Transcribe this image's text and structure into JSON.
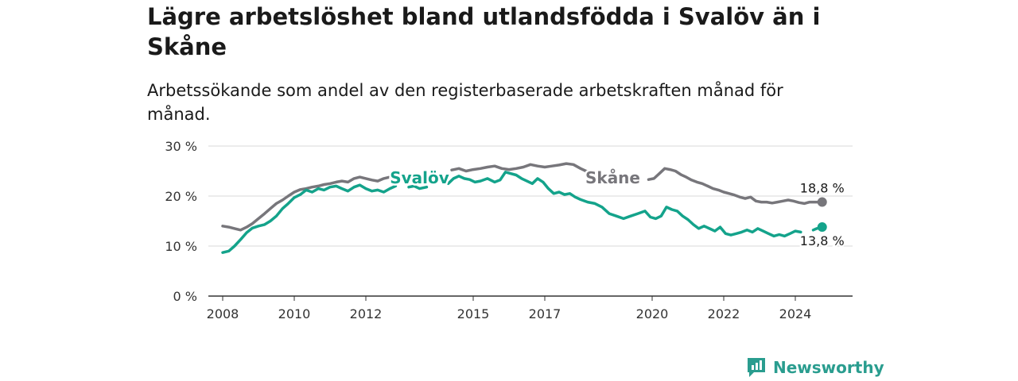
{
  "header": {
    "title": "Lägre arbetslöshet bland utlandsfödda i Svalöv än i Skåne",
    "subtitle": "Arbetssökande som andel av den registerbaserade arbetskraften månad för månad."
  },
  "brand": {
    "name": "Newsworthy",
    "icon": "newsworthy-chart-icon",
    "color": "#2a9d8f"
  },
  "chart_data": {
    "type": "line",
    "title": "Lägre arbetslöshet bland utlandsfödda i Svalöv än i Skåne",
    "subtitle": "Arbetssökande som andel av den registerbaserade arbetskraften månad för månad.",
    "xlabel": "",
    "ylabel": "",
    "ylim": [
      0,
      30
    ],
    "xlim": [
      2007.6,
      2025.6
    ],
    "y_ticks": [
      0,
      10,
      20,
      30
    ],
    "y_tick_labels": [
      "0 %",
      "10 %",
      "20 %",
      "30 %"
    ],
    "x_ticks": [
      2008,
      2010,
      2012,
      2015,
      2017,
      2020,
      2022,
      2024
    ],
    "x_tick_labels": [
      "2008",
      "2010",
      "2012",
      "2015",
      "2017",
      "2020",
      "2022",
      "2024"
    ],
    "grid": true,
    "legend": "inline labels",
    "series": [
      {
        "name": "Svalöv",
        "color": "#14a38b",
        "x": [
          2008.0,
          2008.17,
          2008.33,
          2008.5,
          2008.67,
          2008.83,
          2009.0,
          2009.17,
          2009.33,
          2009.5,
          2009.67,
          2009.83,
          2010.0,
          2010.17,
          2010.33,
          2010.5,
          2010.67,
          2010.83,
          2011.0,
          2011.17,
          2011.33,
          2011.5,
          2011.67,
          2011.83,
          2012.0,
          2012.17,
          2012.33,
          2012.5,
          2012.67,
          2012.83,
          null,
          2013.2,
          2013.35,
          2013.5,
          2013.7,
          null,
          2014.3,
          2014.45,
          2014.6,
          2014.75,
          2014.9,
          2015.05,
          2015.2,
          2015.4,
          2015.6,
          2015.75,
          2015.9,
          2016.05,
          2016.2,
          2016.35,
          2016.5,
          2016.65,
          2016.8,
          2016.95,
          2017.1,
          2017.25,
          2017.4,
          2017.55,
          2017.7,
          2017.85,
          2018.0,
          2018.2,
          2018.4,
          2018.6,
          2018.8,
          2019.0,
          2019.2,
          2019.4,
          2019.6,
          2019.8,
          2019.95,
          2020.1,
          2020.25,
          2020.4,
          2020.55,
          2020.7,
          2020.85,
          2021.0,
          2021.15,
          2021.3,
          2021.45,
          2021.6,
          2021.75,
          2021.9,
          2022.05,
          2022.2,
          2022.35,
          2022.5,
          2022.65,
          2022.8,
          2022.95,
          2023.1,
          2023.25,
          2023.4,
          2023.55,
          2023.7,
          2023.85,
          2024.0,
          2024.15,
          null,
          2024.5,
          2024.6,
          2024.75
        ],
        "values": [
          8.7,
          9.0,
          10.0,
          11.3,
          12.7,
          13.6,
          14.0,
          14.3,
          15.0,
          16.0,
          17.5,
          18.5,
          19.7,
          20.3,
          21.2,
          20.8,
          21.5,
          21.2,
          21.8,
          22.0,
          21.5,
          21.0,
          21.8,
          22.2,
          21.5,
          21.0,
          21.2,
          20.8,
          21.5,
          22.0,
          null,
          21.8,
          22.0,
          21.5,
          21.8,
          null,
          22.5,
          23.5,
          24.0,
          23.5,
          23.3,
          22.8,
          23.0,
          23.5,
          22.8,
          23.2,
          24.8,
          24.5,
          24.2,
          23.5,
          23.0,
          22.5,
          23.5,
          22.8,
          21.5,
          20.5,
          20.8,
          20.3,
          20.5,
          19.8,
          19.3,
          18.8,
          18.5,
          17.8,
          16.5,
          16.0,
          15.5,
          16.0,
          16.5,
          17.0,
          15.8,
          15.5,
          16.0,
          17.8,
          17.3,
          17.0,
          16.0,
          15.3,
          14.3,
          13.5,
          14.0,
          13.5,
          13.0,
          13.8,
          12.5,
          12.2,
          12.5,
          12.8,
          13.2,
          12.8,
          13.5,
          13.0,
          12.5,
          12.0,
          12.3,
          12.0,
          12.5,
          13.0,
          12.8,
          null,
          13.2,
          13.5,
          13.8
        ]
      },
      {
        "name": "Skåne",
        "color": "#77767b",
        "x": [
          2008.0,
          2008.17,
          2008.33,
          2008.5,
          2008.67,
          2008.83,
          2009.0,
          2009.17,
          2009.33,
          2009.5,
          2009.67,
          2009.83,
          2010.0,
          2010.17,
          2010.33,
          2010.5,
          2010.67,
          2010.83,
          2011.0,
          2011.17,
          2011.33,
          2011.5,
          2011.67,
          2011.83,
          2012.0,
          2012.17,
          2012.33,
          2012.5,
          2012.67,
          2012.83,
          null,
          2014.4,
          2014.6,
          2014.8,
          2015.0,
          2015.2,
          2015.4,
          2015.6,
          2015.8,
          2016.0,
          2016.2,
          2016.4,
          2016.6,
          2016.8,
          2017.0,
          2017.2,
          2017.4,
          2017.6,
          2017.8,
          2018.0,
          2018.15,
          2018.3,
          2018.45,
          null,
          2019.9,
          2020.05,
          2020.2,
          2020.35,
          2020.5,
          2020.65,
          2020.8,
          2020.95,
          2021.1,
          2021.25,
          2021.4,
          2021.55,
          2021.7,
          2021.85,
          2022.0,
          2022.15,
          2022.3,
          2022.45,
          2022.6,
          2022.75,
          2022.9,
          2023.05,
          2023.2,
          2023.35,
          2023.5,
          2023.65,
          2023.8,
          2023.95,
          2024.1,
          2024.25,
          2024.4,
          2024.55,
          2024.75
        ],
        "values": [
          14.0,
          13.8,
          13.5,
          13.2,
          13.8,
          14.5,
          15.5,
          16.5,
          17.5,
          18.5,
          19.2,
          20.0,
          20.8,
          21.3,
          21.5,
          21.8,
          22.0,
          22.3,
          22.5,
          22.8,
          23.0,
          22.8,
          23.5,
          23.8,
          23.5,
          23.2,
          23.0,
          23.5,
          23.8,
          24.0,
          null,
          25.2,
          25.5,
          25.0,
          25.3,
          25.5,
          25.8,
          26.0,
          25.5,
          25.3,
          25.5,
          25.8,
          26.3,
          26.0,
          25.8,
          26.0,
          26.2,
          26.5,
          26.3,
          25.5,
          25.0,
          24.8,
          24.3,
          null,
          23.3,
          23.5,
          24.5,
          25.5,
          25.3,
          25.0,
          24.3,
          23.8,
          23.2,
          22.8,
          22.5,
          22.0,
          21.5,
          21.2,
          20.8,
          20.5,
          20.2,
          19.8,
          19.5,
          19.8,
          19.0,
          18.8,
          18.8,
          18.6,
          18.8,
          19.0,
          19.2,
          19.0,
          18.7,
          18.5,
          18.8,
          18.8,
          18.8
        ]
      }
    ],
    "annotations": [
      {
        "series": "Svalöv",
        "text": "13,8 %",
        "x": 2024.75,
        "y": 13.8
      },
      {
        "series": "Skåne",
        "text": "18,8 %",
        "x": 2024.75,
        "y": 18.8
      }
    ],
    "series_labels": [
      {
        "series": "Svalöv",
        "text": "Svalöv",
        "x": 2013.5,
        "y": 23.5
      },
      {
        "series": "Skåne",
        "text": "Skåne",
        "x": 2018.9,
        "y": 23.5
      }
    ]
  }
}
